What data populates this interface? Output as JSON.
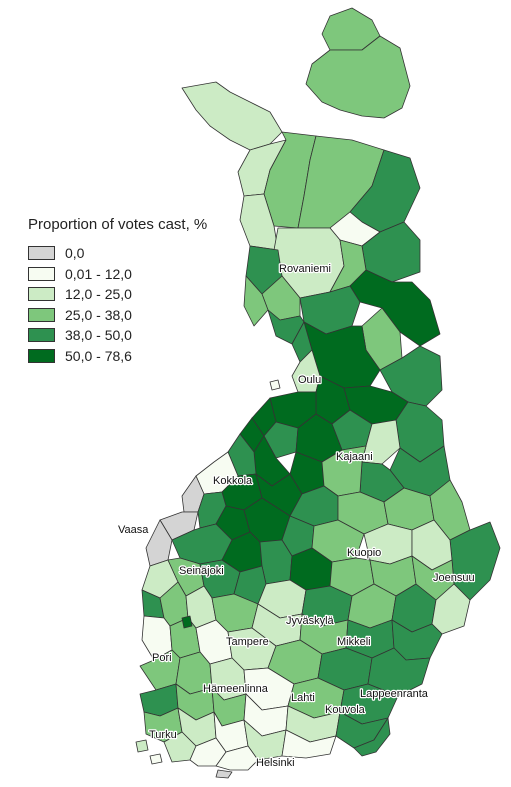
{
  "legend": {
    "title": "Proportion of votes cast, %",
    "classes": [
      {
        "label": "0,0",
        "color": "#d4d4d4"
      },
      {
        "label": "0,01 - 12,0",
        "color": "#f7fcf2"
      },
      {
        "label": "12,0 - 25,0",
        "color": "#ccebc5"
      },
      {
        "label": "25,0 - 38,0",
        "color": "#7ec77c"
      },
      {
        "label": "38,0 - 50,0",
        "color": "#2e9150"
      },
      {
        "label": "50,0 - 78,6",
        "color": "#006b1f"
      }
    ]
  },
  "cities": [
    {
      "name": "Rovaniemi"
    },
    {
      "name": "Oulu"
    },
    {
      "name": "Kajaani"
    },
    {
      "name": "Kokkola"
    },
    {
      "name": "Vaasa"
    },
    {
      "name": "Kuopio"
    },
    {
      "name": "Joensuu"
    },
    {
      "name": "Seinäjoki"
    },
    {
      "name": "Jyväskylä"
    },
    {
      "name": "Tampere"
    },
    {
      "name": "Mikkeli"
    },
    {
      "name": "Pori"
    },
    {
      "name": "Lappeenranta"
    },
    {
      "name": "Hämeenlinna"
    },
    {
      "name": "Lahti"
    },
    {
      "name": "Kouvola"
    },
    {
      "name": "Turku"
    },
    {
      "name": "Helsinki"
    }
  ]
}
